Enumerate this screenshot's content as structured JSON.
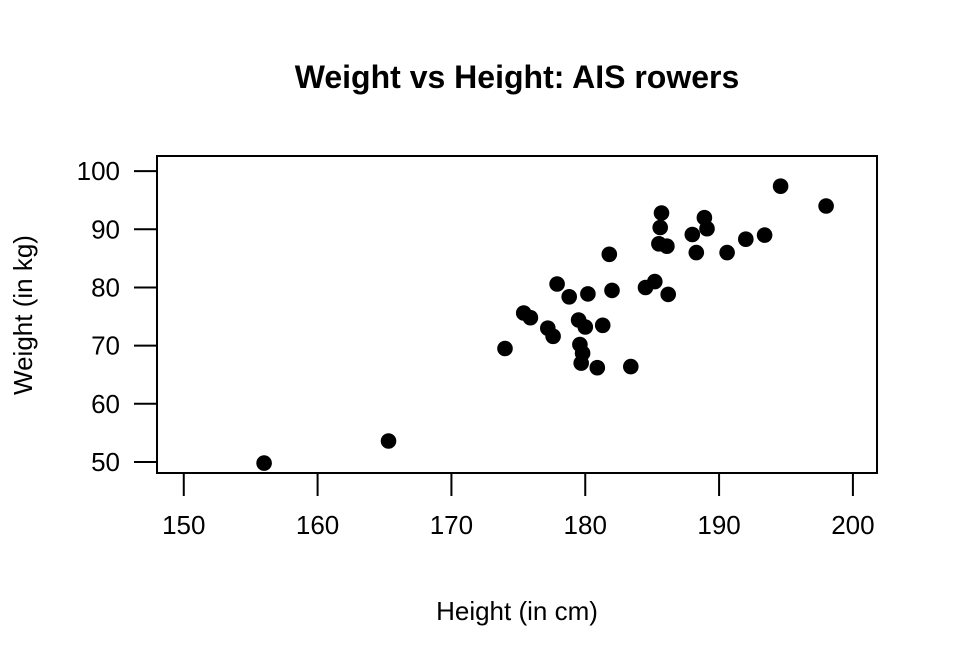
{
  "chart_data": {
    "type": "scatter",
    "title": "Weight vs Height: AIS rowers",
    "xlabel": "Height (in cm)",
    "ylabel": "Weight (in kg)",
    "xlim": [
      148.0,
      201.8
    ],
    "ylim": [
      48.1,
      102.6
    ],
    "x_ticks": [
      150,
      160,
      170,
      180,
      190,
      200
    ],
    "y_ticks": [
      50,
      60,
      70,
      80,
      90,
      100
    ],
    "grid": false,
    "legend": "none",
    "background_color": "#ffffff",
    "point_color": "#000000",
    "axis_color": "#000000",
    "series": [
      {
        "name": "rowers",
        "points": [
          [
            156.0,
            49.8
          ],
          [
            165.3,
            53.6
          ],
          [
            174.0,
            69.5
          ],
          [
            175.4,
            75.6
          ],
          [
            175.9,
            74.8
          ],
          [
            177.2,
            73.0
          ],
          [
            177.6,
            71.6
          ],
          [
            177.9,
            80.6
          ],
          [
            178.8,
            78.4
          ],
          [
            179.5,
            74.4
          ],
          [
            179.6,
            70.2
          ],
          [
            179.7,
            67.0
          ],
          [
            179.8,
            68.7
          ],
          [
            180.0,
            73.2
          ],
          [
            180.2,
            78.9
          ],
          [
            180.9,
            66.2
          ],
          [
            181.3,
            73.5
          ],
          [
            181.8,
            85.7
          ],
          [
            182.0,
            79.5
          ],
          [
            183.4,
            66.4
          ],
          [
            184.5,
            80.0
          ],
          [
            185.2,
            81.0
          ],
          [
            185.5,
            87.5
          ],
          [
            185.6,
            90.3
          ],
          [
            185.7,
            92.8
          ],
          [
            186.1,
            87.1
          ],
          [
            186.2,
            78.8
          ],
          [
            188.0,
            89.1
          ],
          [
            188.3,
            86.0
          ],
          [
            188.9,
            92.0
          ],
          [
            189.1,
            90.1
          ],
          [
            190.6,
            86.0
          ],
          [
            192.0,
            88.3
          ],
          [
            193.4,
            89.0
          ],
          [
            194.6,
            97.4
          ],
          [
            198.0,
            94.0
          ]
        ]
      }
    ]
  }
}
